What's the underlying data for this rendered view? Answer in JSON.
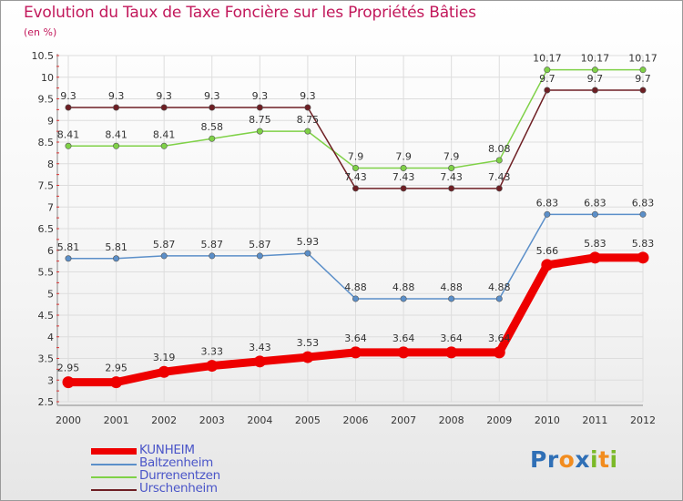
{
  "chart_data": {
    "type": "line",
    "title": "Evolution du Taux de Taxe Foncière sur les Propriétés Bâties",
    "subtitle": "(en %)",
    "x": [
      "2000",
      "2001",
      "2002",
      "2003",
      "2004",
      "2005",
      "2006",
      "2007",
      "2008",
      "2009",
      "2010",
      "2011",
      "2012"
    ],
    "ylim": [
      2.5,
      10.5
    ],
    "yticks": [
      "2.5",
      "3",
      "3.5",
      "4",
      "4.5",
      "5",
      "5.5",
      "6",
      "6.5",
      "7",
      "7.5",
      "8",
      "8.5",
      "9",
      "9.5",
      "10",
      "10.5"
    ],
    "series": [
      {
        "name": "KUNHEIM",
        "color": "#ee0000",
        "width": 9,
        "values": [
          2.95,
          2.95,
          3.19,
          3.33,
          3.43,
          3.53,
          3.64,
          3.64,
          3.64,
          3.64,
          5.66,
          5.83,
          5.83
        ],
        "labels": [
          "2.95",
          "2.95",
          "3.19",
          "3.33",
          "3.43",
          "3.53",
          "3.64",
          "3.64",
          "3.64",
          "3.64",
          "5.66",
          "5.83",
          "5.83"
        ]
      },
      {
        "name": "Baltzenheim",
        "color": "#5b8fc9",
        "width": 1.5,
        "values": [
          5.81,
          5.81,
          5.87,
          5.87,
          5.87,
          5.93,
          4.88,
          4.88,
          4.88,
          4.88,
          6.83,
          6.83,
          6.83
        ],
        "labels": [
          "5.81",
          "5.81",
          "5.87",
          "5.87",
          "5.87",
          "5.93",
          "4.88",
          "4.88",
          "4.88",
          "4.88",
          "6.83",
          "6.83",
          "6.83"
        ]
      },
      {
        "name": "Durrenentzen",
        "color": "#7fd147",
        "width": 1.5,
        "values": [
          8.41,
          8.41,
          8.41,
          8.58,
          8.75,
          8.75,
          7.9,
          7.9,
          7.9,
          8.08,
          10.17,
          10.17,
          10.17
        ],
        "labels": [
          "8.41",
          "8.41",
          "8.41",
          "8.58",
          "8.75",
          "8.75",
          "7.9",
          "7.9",
          "7.9",
          "8.08",
          "10.17",
          "10.17",
          "10.17"
        ]
      },
      {
        "name": "Urschenheim",
        "color": "#6e1f24",
        "width": 1.5,
        "values": [
          9.3,
          9.3,
          9.3,
          9.3,
          9.3,
          9.3,
          7.43,
          7.43,
          7.43,
          7.43,
          9.7,
          9.7,
          9.7
        ],
        "labels": [
          "9.3",
          "9.3",
          "9.3",
          "9.3",
          "9.3",
          "9.3",
          "7.43",
          "7.43",
          "7.43",
          "7.43",
          "9.7",
          "9.7",
          "9.7"
        ]
      }
    ]
  },
  "legend": {
    "items": [
      {
        "label": "KUNHEIM",
        "color": "#ee0000"
      },
      {
        "label": "Baltzenheim",
        "color": "#5b8fc9"
      },
      {
        "label": "Durrenentzen",
        "color": "#7fd147"
      },
      {
        "label": "Urschenheim",
        "color": "#6e1f24"
      }
    ]
  },
  "logo": {
    "letters": [
      {
        "ch": "P",
        "color": "#2f6fb6"
      },
      {
        "ch": "r",
        "color": "#2f6fb6"
      },
      {
        "ch": "o",
        "color": "#f28c1e"
      },
      {
        "ch": "x",
        "color": "#2f6fb6"
      },
      {
        "ch": "i",
        "color": "#7bb928"
      },
      {
        "ch": "t",
        "color": "#f28c1e"
      },
      {
        "ch": "i",
        "color": "#7bb928"
      }
    ]
  }
}
